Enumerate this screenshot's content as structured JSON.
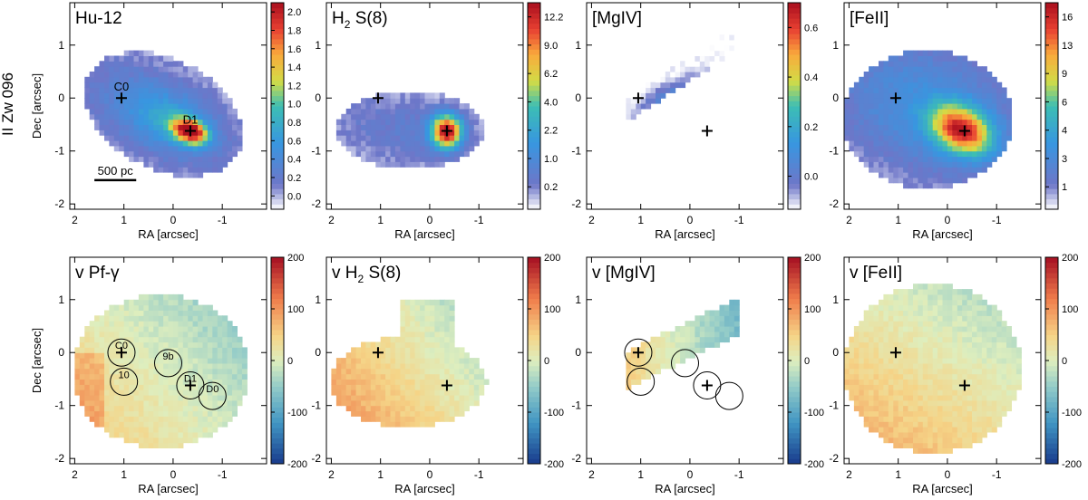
{
  "figure": {
    "galaxy_label": "II Zw 096",
    "xlabel": "RA [arcsec]",
    "ylabel": "Dec [arcsec]",
    "x_ticks": [
      "2",
      "1",
      "0",
      "-1"
    ],
    "y_ticks": [
      "1",
      "0",
      "-1",
      "-2"
    ],
    "scale_bar_label": "500 pc"
  },
  "chart_data": [
    {
      "type": "heatmap",
      "panel": "flux",
      "title": "Hu-12",
      "title_main": "Hu-12",
      "colorbar_ticks": [
        "2.0",
        "1.8",
        "1.6",
        "1.4",
        "1.2",
        "1.0",
        "0.8",
        "0.6",
        "0.4",
        "0.2",
        "0.0"
      ],
      "xlim": [
        2.1,
        -1.9
      ],
      "ylim": [
        -2.1,
        1.8
      ],
      "markers": [
        {
          "label": "C0",
          "x": 1.05,
          "y": 0.0
        },
        {
          "label": "D1",
          "x": -0.35,
          "y": -0.62
        }
      ],
      "scale_bar": "500 pc"
    },
    {
      "type": "heatmap",
      "panel": "flux",
      "title": "H₂ S(8)",
      "title_main": "H",
      "title_sub": "2",
      "title_rest": " S(8)",
      "colorbar_ticks": [
        "12.2",
        "9.0",
        "6.2",
        "4.0",
        "2.2",
        "1.0",
        "0.2"
      ],
      "xlim": [
        2.1,
        -1.9
      ],
      "ylim": [
        -2.1,
        1.8
      ],
      "markers": [
        {
          "label": "",
          "x": 1.05,
          "y": 0.0
        },
        {
          "label": "",
          "x": -0.35,
          "y": -0.62
        }
      ]
    },
    {
      "type": "heatmap",
      "panel": "flux",
      "title": "[MgIV]",
      "title_main": "[MgIV]",
      "colorbar_ticks": [
        "0.6",
        "0.4",
        "0.2",
        "0.0"
      ],
      "xlim": [
        2.1,
        -1.9
      ],
      "ylim": [
        -2.1,
        1.8
      ],
      "markers": [
        {
          "label": "",
          "x": 1.05,
          "y": 0.0
        },
        {
          "label": "",
          "x": -0.35,
          "y": -0.62
        }
      ]
    },
    {
      "type": "heatmap",
      "panel": "flux",
      "title": "[FeII]",
      "title_main": "[FeII]",
      "colorbar_ticks": [
        "16",
        "13",
        "9",
        "6",
        "4",
        "3",
        "1"
      ],
      "xlim": [
        2.1,
        -1.9
      ],
      "ylim": [
        -2.1,
        1.8
      ],
      "markers": [
        {
          "label": "",
          "x": 1.05,
          "y": 0.0
        },
        {
          "label": "",
          "x": -0.35,
          "y": -0.62
        }
      ]
    },
    {
      "type": "heatmap",
      "panel": "velocity",
      "title": "v Pf-γ",
      "title_main": "v Pf-γ",
      "colorbar_ticks": [
        "200",
        "100",
        "0",
        "-100",
        "-200"
      ],
      "clim": [
        -200,
        200
      ],
      "xlim": [
        2.1,
        -1.9
      ],
      "ylim": [
        -2.1,
        1.8
      ],
      "markers": [
        {
          "label": "",
          "x": 1.05,
          "y": 0.0
        },
        {
          "label": "",
          "x": -0.35,
          "y": -0.62
        }
      ],
      "circles": [
        {
          "label": "C0",
          "x": 1.05,
          "y": 0.0
        },
        {
          "label": "10",
          "x": 1.0,
          "y": -0.55
        },
        {
          "label": "9b",
          "x": 0.1,
          "y": -0.2
        },
        {
          "label": "D1",
          "x": -0.35,
          "y": -0.62
        },
        {
          "label": "D0",
          "x": -0.8,
          "y": -0.82
        }
      ]
    },
    {
      "type": "heatmap",
      "panel": "velocity",
      "title": "v H₂ S(8)",
      "title_main": "v H",
      "title_sub": "2",
      "title_rest": " S(8)",
      "colorbar_ticks": [
        "200",
        "100",
        "0",
        "-100",
        "-200"
      ],
      "clim": [
        -200,
        200
      ],
      "xlim": [
        2.1,
        -1.9
      ],
      "ylim": [
        -2.1,
        1.8
      ],
      "markers": [
        {
          "label": "",
          "x": 1.05,
          "y": 0.0
        },
        {
          "label": "",
          "x": -0.35,
          "y": -0.62
        }
      ]
    },
    {
      "type": "heatmap",
      "panel": "velocity",
      "title": "v [MgIV]",
      "title_main": "v [MgIV]",
      "colorbar_ticks": [
        "200",
        "100",
        "0",
        "-100",
        "-200"
      ],
      "clim": [
        -200,
        200
      ],
      "xlim": [
        2.1,
        -1.9
      ],
      "ylim": [
        -2.1,
        1.8
      ],
      "markers": [
        {
          "label": "",
          "x": 1.05,
          "y": 0.0
        },
        {
          "label": "",
          "x": -0.35,
          "y": -0.62
        }
      ],
      "circles": [
        {
          "label": "",
          "x": 1.05,
          "y": 0.0
        },
        {
          "label": "",
          "x": 1.0,
          "y": -0.55
        },
        {
          "label": "",
          "x": 0.1,
          "y": -0.2
        },
        {
          "label": "",
          "x": -0.35,
          "y": -0.62
        },
        {
          "label": "",
          "x": -0.8,
          "y": -0.82
        }
      ]
    },
    {
      "type": "heatmap",
      "panel": "velocity",
      "title": "v [FeII]",
      "title_main": "v [FeII]",
      "colorbar_ticks": [
        "200",
        "100",
        "0",
        "-100",
        "-200"
      ],
      "clim": [
        -200,
        200
      ],
      "xlim": [
        2.1,
        -1.9
      ],
      "ylim": [
        -2.1,
        1.8
      ],
      "markers": [
        {
          "label": "",
          "x": 1.05,
          "y": 0.0
        },
        {
          "label": "",
          "x": -0.35,
          "y": -0.62
        }
      ]
    }
  ]
}
